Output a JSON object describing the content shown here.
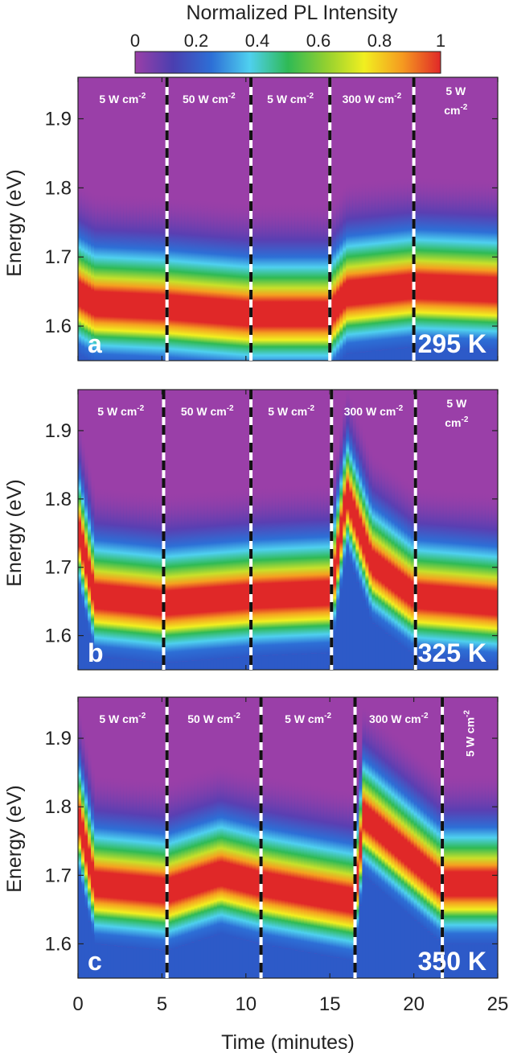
{
  "colorbar": {
    "title": "Normalized PL Intensity",
    "ticks": [
      "0",
      "0.2",
      "0.4",
      "0.6",
      "0.8",
      "1"
    ],
    "stops": [
      "#9a3fa8",
      "#4a3fb0",
      "#2d6fd6",
      "#4fd0ef",
      "#2fba55",
      "#92d030",
      "#f1ef20",
      "#f59a20",
      "#e02828"
    ]
  },
  "x_axis": {
    "label": "Time (minutes)",
    "ticks": [
      "0",
      "5",
      "10",
      "15",
      "20",
      "25"
    ]
  },
  "y_axis": {
    "label": "Energy (eV)",
    "ticks": [
      "1.9",
      "1.8",
      "1.7",
      "1.6"
    ]
  },
  "chart_data": [
    {
      "type": "heatmap",
      "panel_label": "a",
      "temperature_label": "295 K",
      "xlim": [
        0,
        25
      ],
      "ylim": [
        1.55,
        1.96
      ],
      "segment_boundaries_minutes": [
        5.3,
        10.3,
        15.0,
        20.0
      ],
      "segment_labels": [
        "5 W cm-2",
        "50 W cm-2",
        "5 W cm-2",
        "300 W cm-2",
        "5 W cm-2"
      ],
      "peak_energy_eV": [
        {
          "time": 0,
          "energy": 1.66
        },
        {
          "time": 1,
          "energy": 1.645
        },
        {
          "time": 5.3,
          "energy": 1.64
        },
        {
          "time": 10.3,
          "energy": 1.63
        },
        {
          "time": 15.0,
          "energy": 1.63
        },
        {
          "time": 16,
          "energy": 1.66
        },
        {
          "time": 20.0,
          "energy": 1.67
        },
        {
          "time": 25,
          "energy": 1.665
        }
      ]
    },
    {
      "type": "heatmap",
      "panel_label": "b",
      "temperature_label": "325 K",
      "xlim": [
        0,
        25
      ],
      "ylim": [
        1.55,
        1.96
      ],
      "segment_boundaries_minutes": [
        5.1,
        10.3,
        15.1,
        20.1
      ],
      "segment_labels": [
        "5 W cm-2",
        "50 W cm-2",
        "5 W cm-2",
        "300 W cm-2",
        "5 W cm-2"
      ],
      "peak_energy_eV": [
        {
          "time": 0,
          "energy": 1.77
        },
        {
          "time": 1,
          "energy": 1.67
        },
        {
          "time": 5.1,
          "energy": 1.66
        },
        {
          "time": 10.3,
          "energy": 1.67
        },
        {
          "time": 15.1,
          "energy": 1.675
        },
        {
          "time": 16,
          "energy": 1.82
        },
        {
          "time": 17.5,
          "energy": 1.72
        },
        {
          "time": 20.1,
          "energy": 1.67
        },
        {
          "time": 25,
          "energy": 1.66
        }
      ]
    },
    {
      "type": "heatmap",
      "panel_label": "c",
      "temperature_label": "350 K",
      "xlim": [
        0,
        25
      ],
      "ylim": [
        1.55,
        1.96
      ],
      "segment_boundaries_minutes": [
        5.3,
        10.9,
        16.5,
        21.7
      ],
      "segment_labels": [
        "5 W cm-2",
        "50 W cm-2",
        "5 W cm-2",
        "300 W cm-2",
        "5 W cm-2"
      ],
      "peak_energy_eV": [
        {
          "time": 0,
          "energy": 1.8
        },
        {
          "time": 1,
          "energy": 1.7
        },
        {
          "time": 5.3,
          "energy": 1.69
        },
        {
          "time": 8.5,
          "energy": 1.715
        },
        {
          "time": 10.9,
          "energy": 1.7
        },
        {
          "time": 16.5,
          "energy": 1.675
        },
        {
          "time": 17,
          "energy": 1.8
        },
        {
          "time": 21.7,
          "energy": 1.7
        },
        {
          "time": 25,
          "energy": 1.7
        }
      ]
    }
  ]
}
